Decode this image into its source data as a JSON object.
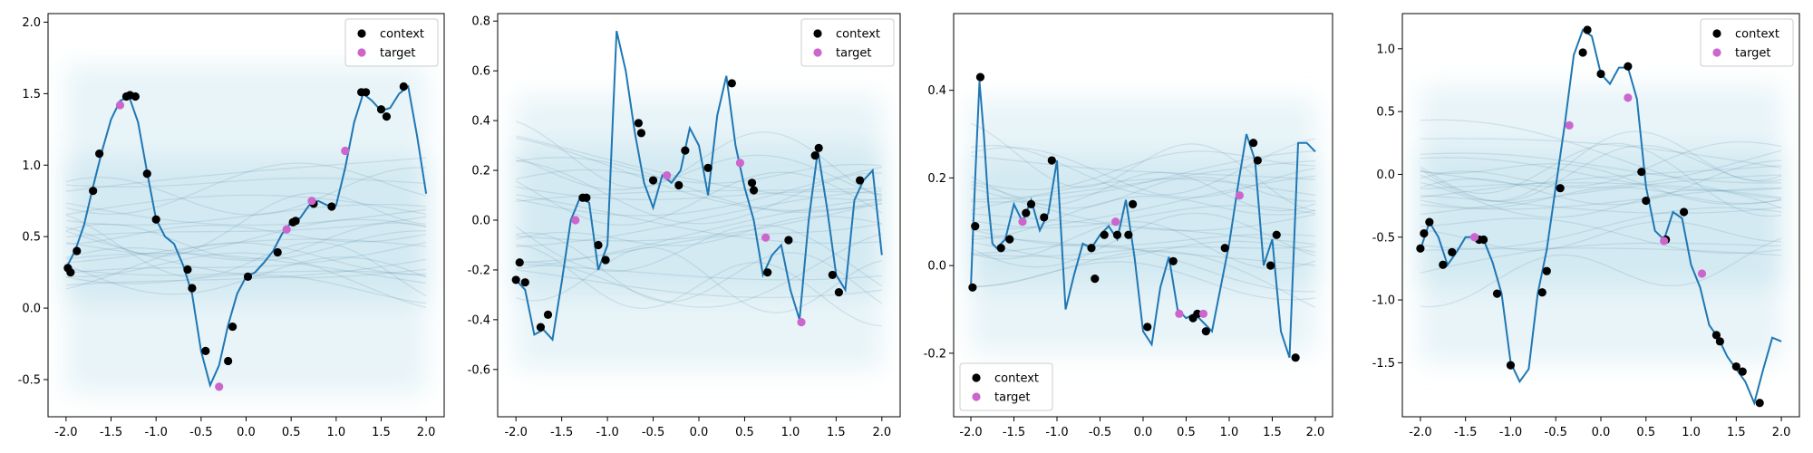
{
  "colors": {
    "line": "#1f77b4",
    "context": "#000000",
    "target": "#cc66cc",
    "band": "#add8e6",
    "samples": "#4a7f9e"
  },
  "chart_data": [
    {
      "type": "line",
      "title": "",
      "xlabel": "",
      "ylabel": "",
      "xlim": [
        -2.2,
        2.2
      ],
      "ylim": [
        -0.76,
        2.06
      ],
      "xticks": [
        -2.0,
        -1.5,
        -1.0,
        -0.5,
        0.0,
        0.5,
        1.0,
        1.5,
        2.0
      ],
      "xtick_labels": [
        "-2.0",
        "-1.5",
        "-1.0",
        "-0.5",
        "0.0",
        "0.5",
        "1.0",
        "1.5",
        "2.0"
      ],
      "yticks": [
        -0.5,
        0.0,
        0.5,
        1.0,
        1.5,
        2.0
      ],
      "ytick_labels": [
        "-0.5",
        "0.0",
        "0.5",
        "1.0",
        "1.5",
        "2.0"
      ],
      "legend": {
        "position": "top-right",
        "entries": [
          "context",
          "target"
        ]
      },
      "band": {
        "x": [
          -2.0,
          2.0
        ],
        "outer": [
          -0.6,
          1.7
        ],
        "inner": [
          0.05,
          1.05
        ]
      },
      "function": {
        "x": [
          -2.0,
          -1.9,
          -1.8,
          -1.7,
          -1.6,
          -1.5,
          -1.4,
          -1.3,
          -1.2,
          -1.1,
          -1.0,
          -0.9,
          -0.8,
          -0.7,
          -0.6,
          -0.5,
          -0.4,
          -0.3,
          -0.2,
          -0.1,
          0.0,
          0.1,
          0.2,
          0.3,
          0.4,
          0.5,
          0.6,
          0.7,
          0.8,
          0.9,
          1.0,
          1.1,
          1.2,
          1.3,
          1.4,
          1.5,
          1.6,
          1.7,
          1.8,
          1.9,
          2.0
        ],
        "y": [
          0.28,
          0.4,
          0.58,
          0.85,
          1.1,
          1.32,
          1.45,
          1.48,
          1.3,
          0.95,
          0.62,
          0.5,
          0.45,
          0.3,
          0.1,
          -0.3,
          -0.54,
          -0.4,
          -0.12,
          0.1,
          0.22,
          0.25,
          0.32,
          0.4,
          0.52,
          0.6,
          0.63,
          0.72,
          0.75,
          0.72,
          0.72,
          0.98,
          1.3,
          1.5,
          1.45,
          1.38,
          1.4,
          1.5,
          1.55,
          1.2,
          0.8
        ]
      },
      "context": {
        "x": [
          -1.98,
          -1.95,
          -1.88,
          -1.7,
          -1.63,
          -1.33,
          -1.29,
          -1.23,
          -1.1,
          -1.0,
          -0.65,
          -0.6,
          -0.45,
          -0.2,
          -0.15,
          0.02,
          0.35,
          0.52,
          0.55,
          0.75,
          0.95,
          1.28,
          1.33,
          1.5,
          1.56,
          1.75
        ],
        "y": [
          0.28,
          0.25,
          0.4,
          0.82,
          1.08,
          1.48,
          1.49,
          1.48,
          0.94,
          0.62,
          0.27,
          0.14,
          -0.3,
          -0.37,
          -0.13,
          0.22,
          0.39,
          0.6,
          0.61,
          0.73,
          0.71,
          1.51,
          1.51,
          1.39,
          1.34,
          1.55
        ]
      },
      "target": {
        "x": [
          -1.4,
          -0.3,
          0.45,
          0.73,
          1.1
        ],
        "y": [
          1.42,
          -0.55,
          0.55,
          0.75,
          1.1
        ]
      }
    },
    {
      "type": "line",
      "title": "",
      "xlabel": "",
      "ylabel": "",
      "xlim": [
        -2.2,
        2.2
      ],
      "ylim": [
        -0.79,
        0.83
      ],
      "xticks": [
        -2.0,
        -1.5,
        -1.0,
        -0.5,
        0.0,
        0.5,
        1.0,
        1.5,
        2.0
      ],
      "xtick_labels": [
        "-2.0",
        "-1.5",
        "-1.0",
        "-0.5",
        "0.0",
        "0.5",
        "1.0",
        "1.5",
        "2.0"
      ],
      "yticks": [
        -0.6,
        -0.4,
        -0.2,
        0.0,
        0.2,
        0.4,
        0.6,
        0.8
      ],
      "ytick_labels": [
        "-0.6",
        "-0.4",
        "-0.2",
        "0.0",
        "0.2",
        "0.4",
        "0.6",
        "0.8"
      ],
      "legend": {
        "position": "top-right",
        "entries": [
          "context",
          "target"
        ]
      },
      "band": {
        "x": [
          -2.0,
          2.0
        ],
        "outer": [
          -0.6,
          0.5
        ],
        "inner": [
          -0.3,
          0.3
        ]
      },
      "function": {
        "x": [
          -2.0,
          -1.9,
          -1.8,
          -1.7,
          -1.6,
          -1.5,
          -1.4,
          -1.3,
          -1.2,
          -1.1,
          -1.0,
          -0.9,
          -0.8,
          -0.7,
          -0.6,
          -0.5,
          -0.4,
          -0.3,
          -0.2,
          -0.1,
          0.0,
          0.1,
          0.2,
          0.3,
          0.4,
          0.5,
          0.6,
          0.7,
          0.8,
          0.9,
          1.0,
          1.1,
          1.2,
          1.3,
          1.4,
          1.5,
          1.6,
          1.7,
          1.8,
          1.9,
          2.0
        ],
        "y": [
          -0.24,
          -0.28,
          -0.46,
          -0.44,
          -0.48,
          -0.25,
          0.0,
          0.09,
          0.07,
          -0.2,
          -0.1,
          0.76,
          0.6,
          0.35,
          0.15,
          0.05,
          0.18,
          0.15,
          0.2,
          0.37,
          0.3,
          0.1,
          0.42,
          0.58,
          0.3,
          0.13,
          0.0,
          -0.22,
          -0.14,
          -0.1,
          -0.28,
          -0.4,
          0.0,
          0.28,
          0.05,
          -0.22,
          -0.28,
          0.08,
          0.16,
          0.2,
          -0.14
        ]
      },
      "context": {
        "x": [
          -2.0,
          -1.96,
          -1.9,
          -1.73,
          -1.65,
          -1.27,
          -1.23,
          -1.1,
          -1.02,
          -0.66,
          -0.63,
          -0.5,
          -0.22,
          -0.15,
          0.1,
          0.36,
          0.58,
          0.6,
          0.75,
          0.98,
          1.27,
          1.31,
          1.46,
          1.53,
          1.76
        ],
        "y": [
          -0.24,
          -0.17,
          -0.25,
          -0.43,
          -0.38,
          0.09,
          0.09,
          -0.1,
          -0.16,
          0.39,
          0.35,
          0.16,
          0.14,
          0.28,
          0.21,
          0.55,
          0.15,
          0.12,
          -0.21,
          -0.08,
          0.26,
          0.29,
          -0.22,
          -0.29,
          0.16
        ]
      },
      "target": {
        "x": [
          -1.35,
          -0.35,
          0.45,
          0.73,
          1.12
        ],
        "y": [
          0.0,
          0.18,
          0.23,
          -0.07,
          -0.41
        ]
      }
    },
    {
      "type": "line",
      "title": "",
      "xlabel": "",
      "ylabel": "",
      "xlim": [
        -2.2,
        2.2
      ],
      "ylim": [
        -0.345,
        0.575
      ],
      "xticks": [
        -2.0,
        -1.5,
        -1.0,
        -0.5,
        0.0,
        0.5,
        1.0,
        1.5,
        2.0
      ],
      "xtick_labels": [
        "-2.0",
        "-1.5",
        "-1.0",
        "-0.5",
        "0.0",
        "0.5",
        "1.0",
        "1.5",
        "2.0"
      ],
      "yticks": [
        -0.2,
        0.0,
        0.2,
        0.4
      ],
      "ytick_labels": [
        "-0.2",
        "0.0",
        "0.2",
        "0.4"
      ],
      "legend": {
        "position": "bottom-left",
        "entries": [
          "context",
          "target"
        ]
      },
      "band": {
        "x": [
          -2.0,
          2.0
        ],
        "outer": [
          -0.2,
          0.38
        ],
        "inner": [
          -0.05,
          0.25
        ]
      },
      "function": {
        "x": [
          -2.0,
          -1.95,
          -1.9,
          -1.85,
          -1.8,
          -1.75,
          -1.7,
          -1.6,
          -1.5,
          -1.4,
          -1.3,
          -1.2,
          -1.1,
          -1.0,
          -0.9,
          -0.8,
          -0.7,
          -0.6,
          -0.5,
          -0.4,
          -0.3,
          -0.2,
          -0.1,
          0.0,
          0.1,
          0.2,
          0.3,
          0.4,
          0.5,
          0.6,
          0.7,
          0.8,
          0.9,
          1.0,
          1.1,
          1.2,
          1.3,
          1.4,
          1.5,
          1.6,
          1.7,
          1.8,
          1.9,
          2.0
        ],
        "y": [
          -0.05,
          0.2,
          0.42,
          0.3,
          0.15,
          0.05,
          0.04,
          0.06,
          0.14,
          0.1,
          0.15,
          0.08,
          0.12,
          0.24,
          -0.1,
          -0.02,
          0.05,
          0.04,
          0.07,
          0.09,
          0.06,
          0.15,
          0.02,
          -0.15,
          -0.18,
          -0.05,
          0.02,
          -0.1,
          -0.12,
          -0.11,
          -0.13,
          -0.15,
          -0.05,
          0.05,
          0.18,
          0.3,
          0.24,
          0.0,
          0.06,
          -0.15,
          -0.21,
          0.28,
          0.28,
          0.26
        ]
      },
      "context": {
        "x": [
          -1.98,
          -1.95,
          -1.89,
          -1.65,
          -1.55,
          -1.36,
          -1.3,
          -1.15,
          -1.06,
          -0.6,
          -0.56,
          -0.45,
          -0.3,
          -0.17,
          -0.12,
          0.05,
          0.35,
          0.58,
          0.63,
          0.73,
          0.95,
          1.28,
          1.33,
          1.48,
          1.55,
          1.77
        ],
        "y": [
          -0.05,
          0.09,
          0.43,
          0.04,
          0.06,
          0.12,
          0.14,
          0.11,
          0.24,
          0.04,
          -0.03,
          0.07,
          0.07,
          0.07,
          0.14,
          -0.14,
          0.01,
          -0.12,
          -0.11,
          -0.15,
          0.04,
          0.28,
          0.24,
          0.0,
          0.07,
          -0.21
        ]
      },
      "target": {
        "x": [
          -1.4,
          -0.32,
          0.42,
          0.7,
          1.12
        ],
        "y": [
          0.1,
          0.1,
          -0.11,
          -0.11,
          0.16
        ]
      }
    },
    {
      "type": "line",
      "title": "",
      "xlabel": "",
      "ylabel": "",
      "xlim": [
        -2.2,
        2.2
      ],
      "ylim": [
        -1.93,
        1.28
      ],
      "xticks": [
        -2.0,
        -1.5,
        -1.0,
        -0.5,
        0.0,
        0.5,
        1.0,
        1.5,
        2.0
      ],
      "xtick_labels": [
        "-2.0",
        "-1.5",
        "-1.0",
        "-0.5",
        "0.0",
        "0.5",
        "1.0",
        "1.5",
        "2.0"
      ],
      "yticks": [
        -1.5,
        -1.0,
        -0.5,
        0.0,
        0.5,
        1.0
      ],
      "ytick_labels": [
        "-1.5",
        "-1.0",
        "-0.5",
        "0.0",
        "0.5",
        "1.0"
      ],
      "legend": {
        "position": "top-right",
        "entries": [
          "context",
          "target"
        ]
      },
      "band": {
        "x": [
          -2.0,
          2.0
        ],
        "outer": [
          -1.5,
          0.7
        ],
        "inner": [
          -0.9,
          0.2
        ]
      },
      "function": {
        "x": [
          -2.0,
          -1.9,
          -1.8,
          -1.7,
          -1.6,
          -1.5,
          -1.4,
          -1.3,
          -1.2,
          -1.1,
          -1.0,
          -0.9,
          -0.8,
          -0.7,
          -0.6,
          -0.5,
          -0.4,
          -0.3,
          -0.2,
          -0.1,
          0.0,
          0.1,
          0.2,
          0.3,
          0.4,
          0.5,
          0.6,
          0.7,
          0.8,
          0.9,
          1.0,
          1.1,
          1.2,
          1.3,
          1.4,
          1.5,
          1.6,
          1.7,
          1.8,
          1.9,
          2.0
        ],
        "y": [
          -0.6,
          -0.38,
          -0.5,
          -0.72,
          -0.62,
          -0.5,
          -0.5,
          -0.52,
          -0.7,
          -0.95,
          -1.5,
          -1.65,
          -1.55,
          -0.95,
          -0.6,
          -0.1,
          0.4,
          0.95,
          1.15,
          1.1,
          0.8,
          0.72,
          0.85,
          0.85,
          0.6,
          -0.1,
          -0.45,
          -0.52,
          -0.3,
          -0.35,
          -0.72,
          -0.9,
          -1.2,
          -1.3,
          -1.45,
          -1.55,
          -1.65,
          -1.82,
          -1.55,
          -1.3,
          -1.33
        ]
      },
      "context": {
        "x": [
          -2.0,
          -1.96,
          -1.9,
          -1.75,
          -1.65,
          -1.35,
          -1.3,
          -1.15,
          -1.0,
          -0.65,
          -0.6,
          -0.45,
          -0.2,
          -0.15,
          0.0,
          0.3,
          0.45,
          0.5,
          0.72,
          0.92,
          1.28,
          1.32,
          1.5,
          1.57,
          1.76
        ],
        "y": [
          -0.59,
          -0.47,
          -0.38,
          -0.72,
          -0.62,
          -0.52,
          -0.52,
          -0.95,
          -1.52,
          -0.94,
          -0.77,
          -0.11,
          0.97,
          1.15,
          0.8,
          0.86,
          0.02,
          -0.21,
          -0.52,
          -0.3,
          -1.28,
          -1.33,
          -1.53,
          -1.57,
          -1.82
        ]
      },
      "target": {
        "x": [
          -1.4,
          -0.35,
          0.3,
          0.7,
          1.12
        ],
        "y": [
          -0.5,
          0.39,
          0.61,
          -0.53,
          -0.79
        ]
      }
    }
  ]
}
